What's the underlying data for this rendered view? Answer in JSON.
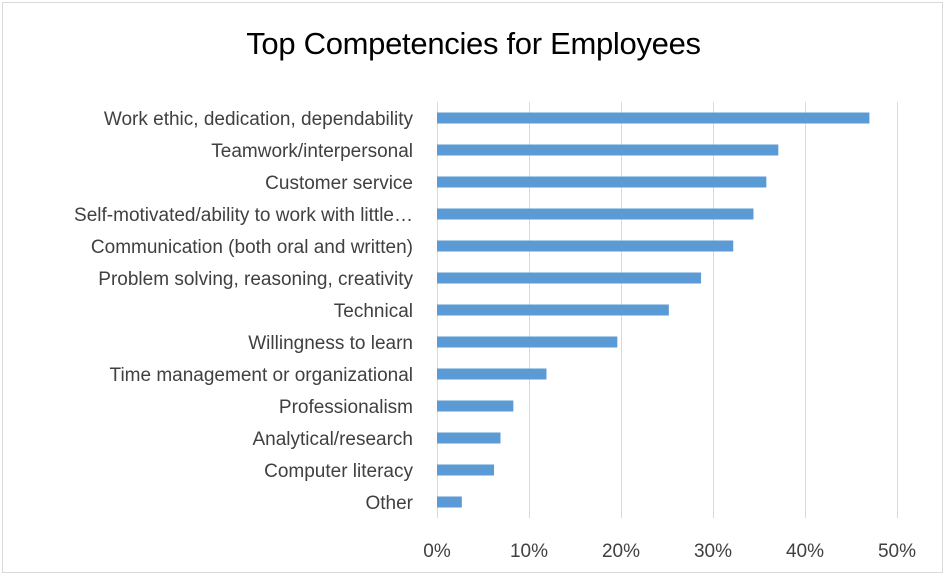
{
  "chart_data": {
    "type": "bar",
    "orientation": "horizontal",
    "title": "Top Competencies for Employees",
    "categories": [
      "Work ethic, dedication, dependability",
      "Teamwork/interpersonal",
      "Customer service",
      "Self-motivated/ability to work with little…",
      "Communication (both oral and written)",
      "Problem solving, reasoning, creativity",
      "Technical",
      "Willingness to learn",
      "Time management or organizational",
      "Professionalism",
      "Analytical/research",
      "Computer literacy",
      "Other"
    ],
    "values": [
      0.47,
      0.371,
      0.358,
      0.344,
      0.322,
      0.287,
      0.252,
      0.196,
      0.119,
      0.083,
      0.069,
      0.062,
      0.027
    ],
    "xlim": [
      0,
      0.5
    ],
    "xticks": [
      0,
      0.1,
      0.2,
      0.3,
      0.4,
      0.5
    ],
    "xtick_labels": [
      "0%",
      "10%",
      "20%",
      "30%",
      "40%",
      "50%"
    ],
    "xlabel": "",
    "ylabel": "",
    "grid": "vertical",
    "legend": "none",
    "bar_color": "#5b9bd5",
    "gridline_color": "#d9d9d9"
  }
}
